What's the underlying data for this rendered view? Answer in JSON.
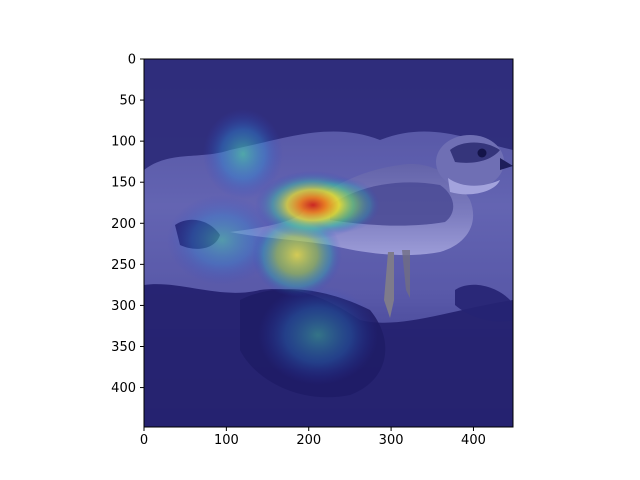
{
  "figure": {
    "xaxis": {
      "range": [
        0,
        448
      ],
      "ticks": [
        {
          "value": 0,
          "label": "0"
        },
        {
          "value": 100,
          "label": "100"
        },
        {
          "value": 200,
          "label": "200"
        },
        {
          "value": 300,
          "label": "300"
        },
        {
          "value": 400,
          "label": "400"
        }
      ]
    },
    "yaxis": {
      "range": [
        0,
        448
      ],
      "inverted": true,
      "ticks": [
        {
          "value": 0,
          "label": "0"
        },
        {
          "value": 50,
          "label": "50"
        },
        {
          "value": 100,
          "label": "100"
        },
        {
          "value": 150,
          "label": "150"
        },
        {
          "value": 200,
          "label": "200"
        },
        {
          "value": 250,
          "label": "250"
        },
        {
          "value": 300,
          "label": "300"
        },
        {
          "value": 350,
          "label": "350"
        },
        {
          "value": 400,
          "label": "400"
        }
      ]
    },
    "image": {
      "subject": "bird",
      "overlay": "heatmap",
      "tint": "#3a3c86"
    },
    "heatmap_hotspots": [
      {
        "x": 205,
        "y": 178,
        "intensity": 1.0
      },
      {
        "x": 185,
        "y": 240,
        "intensity": 0.75
      },
      {
        "x": 125,
        "y": 115,
        "intensity": 0.45
      },
      {
        "x": 235,
        "y": 178,
        "intensity": 0.55
      },
      {
        "x": 95,
        "y": 220,
        "intensity": 0.3
      },
      {
        "x": 210,
        "y": 330,
        "intensity": 0.35
      }
    ]
  }
}
